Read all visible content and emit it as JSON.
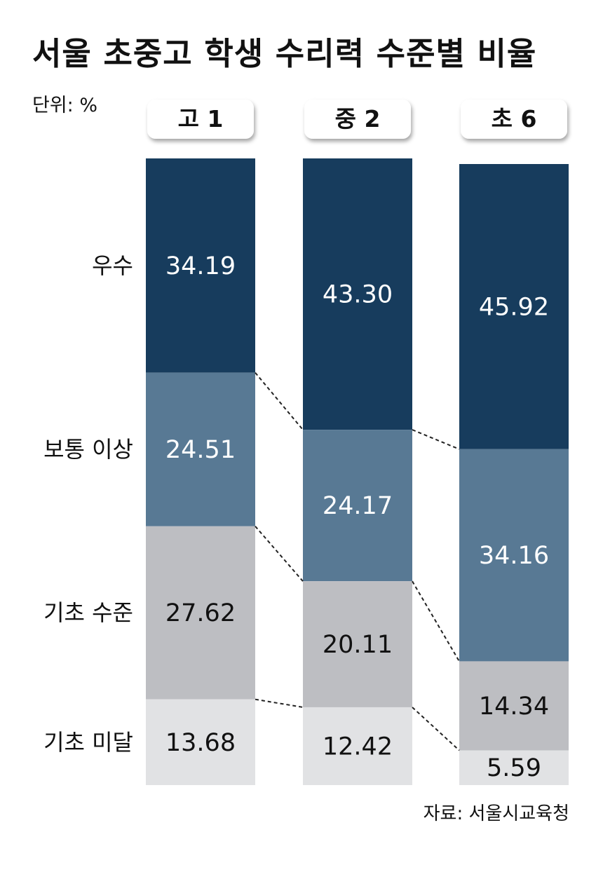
{
  "title": "서울 초중고 학생 수리력 수준별 비율",
  "unit_label": "단위: %",
  "source": "자료: 서울시교육청",
  "colors": {
    "excellent": "#173c5d",
    "above_average": "#587994",
    "basic": "#bdbec2",
    "below_basic": "#e1e2e4",
    "label_dark": "#111111",
    "label_light": "#ffffff"
  },
  "chart_data": {
    "type": "bar",
    "stacked": true,
    "normalized_percent": true,
    "categories": [
      "고 1",
      "중 2",
      "초 6"
    ],
    "series": [
      {
        "name": "우수",
        "values": [
          34.19,
          43.3,
          45.92
        ],
        "labels": [
          "34.19",
          "43.30",
          "45.92"
        ]
      },
      {
        "name": "보통 이상",
        "values": [
          24.51,
          24.17,
          34.16
        ],
        "labels": [
          "24.51",
          "24.17",
          "34.16"
        ]
      },
      {
        "name": "기초 수준",
        "values": [
          27.62,
          20.11,
          14.34
        ],
        "labels": [
          "27.62",
          "20.11",
          "14.34"
        ]
      },
      {
        "name": "기초 미달",
        "values": [
          13.68,
          12.42,
          5.59
        ],
        "labels": [
          "13.68",
          "12.42",
          "5.59"
        ]
      }
    ],
    "ylim": [
      0,
      100
    ],
    "legend": "left",
    "grid": false
  }
}
